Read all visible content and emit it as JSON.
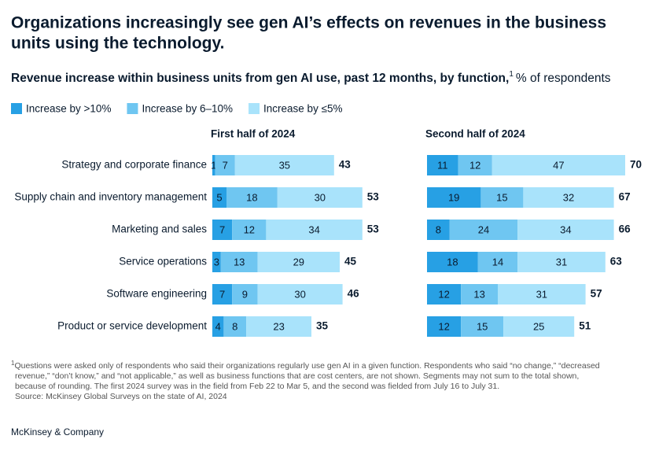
{
  "title_lines": [
    "Organizations increasingly see gen AI’s effects on revenues in the business",
    "units using the technology."
  ],
  "subtitle": "Revenue increase within business units from gen AI use, past 12 months, by function,",
  "subtitle_note_marker": "1",
  "subtitle_units": "% of respondents",
  "chart_data": [
    {
      "type": "stacked-bar-horizontal",
      "title": "First half of 2024",
      "categories": [
        "Strategy and corporate finance",
        "Supply chain and inventory management",
        "Marketing and sales",
        "Service operations",
        "Software engineering",
        "Product or service development"
      ],
      "series": [
        {
          "name": "Increase by >10%",
          "color": "#27a0e4",
          "values": [
            1,
            5,
            7,
            3,
            7,
            4
          ]
        },
        {
          "name": "Increase by 6–10%",
          "color": "#6fc6f1",
          "values": [
            7,
            18,
            12,
            13,
            9,
            8
          ]
        },
        {
          "name": "Increase by ≤5%",
          "color": "#a9e3fb",
          "values": [
            35,
            30,
            34,
            29,
            30,
            23
          ]
        }
      ],
      "totals": [
        43,
        53,
        53,
        45,
        46,
        35
      ]
    },
    {
      "type": "stacked-bar-horizontal",
      "title": "Second half of 2024",
      "series": [
        {
          "name": "Increase by >10%",
          "color": "#27a0e4",
          "values": [
            11,
            19,
            8,
            18,
            12,
            12
          ]
        },
        {
          "name": "Increase by 6–10%",
          "color": "#6fc6f1",
          "values": [
            12,
            15,
            24,
            14,
            13,
            15
          ]
        },
        {
          "name": "Increase by ≤5%",
          "color": "#a9e3fb",
          "values": [
            47,
            32,
            34,
            31,
            31,
            25
          ]
        }
      ],
      "totals": [
        70,
        67,
        66,
        63,
        57,
        51
      ]
    }
  ],
  "footnote_marker": "1",
  "footnote_lines": [
    "Questions were asked only of respondents who said their organizations regularly use gen AI in a given function. Respondents who said “no change,” “decreased",
    "revenue,” “don’t know,” and “not applicable,” as well as business functions that are cost centers, are not shown. Segments may not sum to the total shown,",
    "because of rounding. The first 2024 survey was in the field from Feb 22 to Mar 5, and the second was fielded from July 16 to July 31."
  ],
  "source": "Source: McKinsey Global Surveys on the state of AI, 2024",
  "brand": "McKinsey & Company"
}
